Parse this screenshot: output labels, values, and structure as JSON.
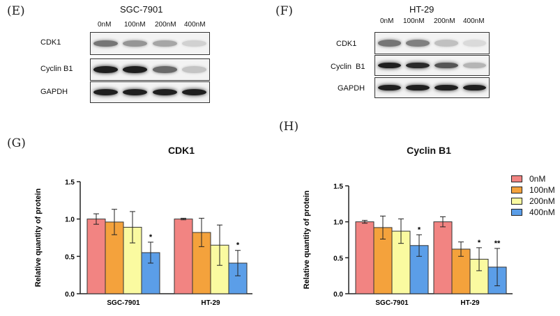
{
  "panels": {
    "E": {
      "label": "(E)",
      "cell_line": "SGC-7901",
      "doses": [
        "0nM",
        "100nM",
        "200nM",
        "400nM"
      ],
      "rows": [
        {
          "label": "CDK1",
          "intensities": [
            0.55,
            0.4,
            0.32,
            0.12
          ]
        },
        {
          "label": "Cyclin B1",
          "intensities": [
            0.95,
            0.95,
            0.6,
            0.18
          ]
        },
        {
          "label": "GAPDH",
          "intensities": [
            0.95,
            0.95,
            0.95,
            0.95
          ]
        }
      ]
    },
    "F": {
      "label": "(F)",
      "cell_line": "HT-29",
      "doses": [
        "0nM",
        "100nM",
        "200nM",
        "400nM"
      ],
      "rows": [
        {
          "label": "CDK1",
          "intensities": [
            0.55,
            0.5,
            0.2,
            0.08
          ]
        },
        {
          "label": "Cyclin  B1",
          "intensities": [
            0.95,
            0.9,
            0.7,
            0.25
          ]
        },
        {
          "label": "GAPDH",
          "intensities": [
            0.95,
            0.95,
            0.95,
            0.95
          ]
        }
      ]
    },
    "G": {
      "label": "(G)"
    },
    "H": {
      "label": "(H)"
    }
  },
  "legend": {
    "entries": [
      "0nM",
      "100nM",
      "200nM",
      "400nM"
    ],
    "colors": [
      "#f28482",
      "#f4a23c",
      "#fafaa0",
      "#5b9ee8"
    ]
  },
  "chart_data": [
    {
      "type": "bar",
      "title": "CDK1",
      "ylabel": "Relative quantity of protein",
      "xlabel": "",
      "ylim": [
        0,
        1.5
      ],
      "yticks": [
        "0.0",
        "0.5",
        "1.0",
        "1.5"
      ],
      "categories": [
        "SGC-7901",
        "HT-29"
      ],
      "series": [
        {
          "name": "0nM",
          "values": [
            1.0,
            1.0
          ],
          "errors": [
            0.07,
            0.01
          ],
          "sig": [
            "",
            ""
          ]
        },
        {
          "name": "100nM",
          "values": [
            0.96,
            0.82
          ],
          "errors": [
            0.17,
            0.19
          ],
          "sig": [
            "",
            ""
          ]
        },
        {
          "name": "200nM",
          "values": [
            0.89,
            0.65
          ],
          "errors": [
            0.21,
            0.27
          ],
          "sig": [
            "",
            ""
          ]
        },
        {
          "name": "400nM",
          "values": [
            0.55,
            0.41
          ],
          "errors": [
            0.14,
            0.17
          ],
          "sig": [
            "*",
            "*"
          ]
        }
      ]
    },
    {
      "type": "bar",
      "title": "Cyclin B1",
      "ylabel": "Relative quantity of protein",
      "xlabel": "",
      "ylim": [
        0,
        1.5
      ],
      "yticks": [
        "0.0",
        "0.5",
        "1.0",
        "1.5"
      ],
      "categories": [
        "SGC-7901",
        "HT-29"
      ],
      "series": [
        {
          "name": "0nM",
          "values": [
            1.0,
            1.0
          ],
          "errors": [
            0.02,
            0.07
          ],
          "sig": [
            "",
            ""
          ]
        },
        {
          "name": "100nM",
          "values": [
            0.92,
            0.62
          ],
          "errors": [
            0.16,
            0.1
          ],
          "sig": [
            "",
            ""
          ]
        },
        {
          "name": "200nM",
          "values": [
            0.87,
            0.48
          ],
          "errors": [
            0.17,
            0.16
          ],
          "sig": [
            "",
            "*"
          ]
        },
        {
          "name": "400nM",
          "values": [
            0.67,
            0.37
          ],
          "errors": [
            0.15,
            0.26
          ],
          "sig": [
            "*",
            "**"
          ]
        }
      ]
    }
  ]
}
